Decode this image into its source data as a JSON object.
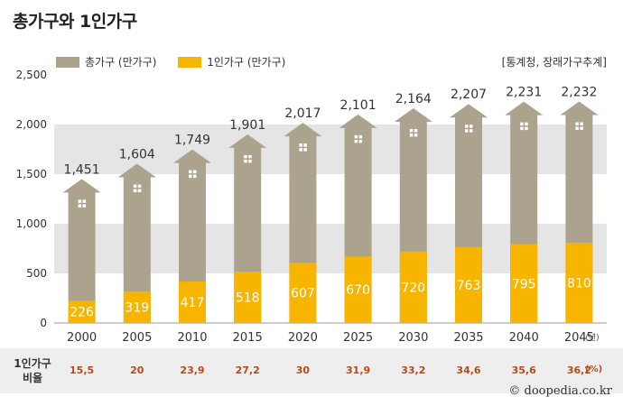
{
  "title": "총가구와 1인가구",
  "legend": {
    "total_label": "총가구 (만가구)",
    "single_label": "1인가구 (만가구)"
  },
  "source": "[통계청, 장래가구추계]",
  "year_unit": "(년)",
  "ratio": {
    "label_line1": "1인가구",
    "label_line2": "비율",
    "values": [
      "15,5",
      "20",
      "23,9",
      "27,2",
      "30",
      "31,9",
      "33,2",
      "34,6",
      "35,6",
      "36,2"
    ],
    "unit": "(%)"
  },
  "copyright": "© doopedia.co.kr",
  "colors": {
    "total": "#aba38e",
    "single": "#f7b500",
    "band": "#e5e5e5",
    "ratio_text": "#b84a1a"
  },
  "chart_data": {
    "type": "bar",
    "title": "총가구와 1인가구",
    "xlabel": "(년)",
    "ylabel": "",
    "ylim": [
      0,
      2500
    ],
    "yticks": [
      0,
      500,
      1000,
      1500,
      2000,
      2500
    ],
    "ytick_labels": [
      "0",
      "500",
      "1,000",
      "1,500",
      "2,000",
      "2,500"
    ],
    "categories": [
      "2000",
      "2005",
      "2010",
      "2015",
      "2020",
      "2025",
      "2030",
      "2035",
      "2040",
      "2045"
    ],
    "series": [
      {
        "name": "총가구 (만가구)",
        "values": [
          1451,
          1604,
          1749,
          1901,
          2017,
          2101,
          2164,
          2207,
          2231,
          2232
        ],
        "labels": [
          "1,451",
          "1,604",
          "1,749",
          "1,901",
          "2,017",
          "2,101",
          "2,164",
          "2,207",
          "2,231",
          "2,232"
        ]
      },
      {
        "name": "1인가구 (만가구)",
        "values": [
          226,
          319,
          417,
          518,
          607,
          670,
          720,
          763,
          795,
          810
        ],
        "labels": [
          "226",
          "319",
          "417",
          "518",
          "607",
          "670",
          "720",
          "763",
          "795",
          "810"
        ]
      }
    ],
    "legend_position": "top-left"
  }
}
